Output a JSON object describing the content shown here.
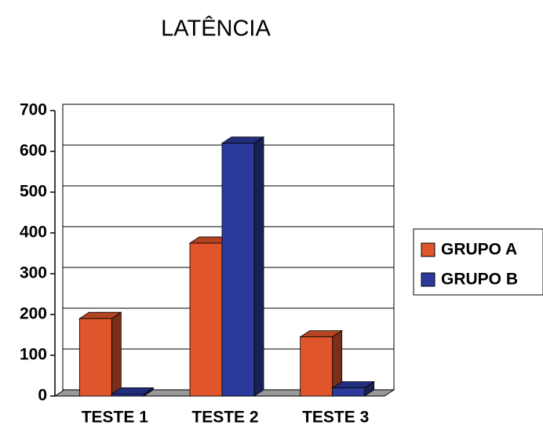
{
  "chart_data": {
    "type": "bar",
    "title": "LATÊNCIA",
    "categories": [
      "TESTE 1",
      "TESTE 2",
      "TESTE 3"
    ],
    "series": [
      {
        "name": "GRUPO A",
        "color": "#e0552b",
        "values": [
          190,
          375,
          145
        ]
      },
      {
        "name": "GRUPO B",
        "color": "#2b3a9c",
        "values": [
          5,
          620,
          20
        ]
      }
    ],
    "ylim": [
      0,
      700
    ],
    "yticks": [
      0,
      100,
      200,
      300,
      400,
      500,
      600,
      700
    ],
    "grid": true,
    "legend": "right"
  }
}
